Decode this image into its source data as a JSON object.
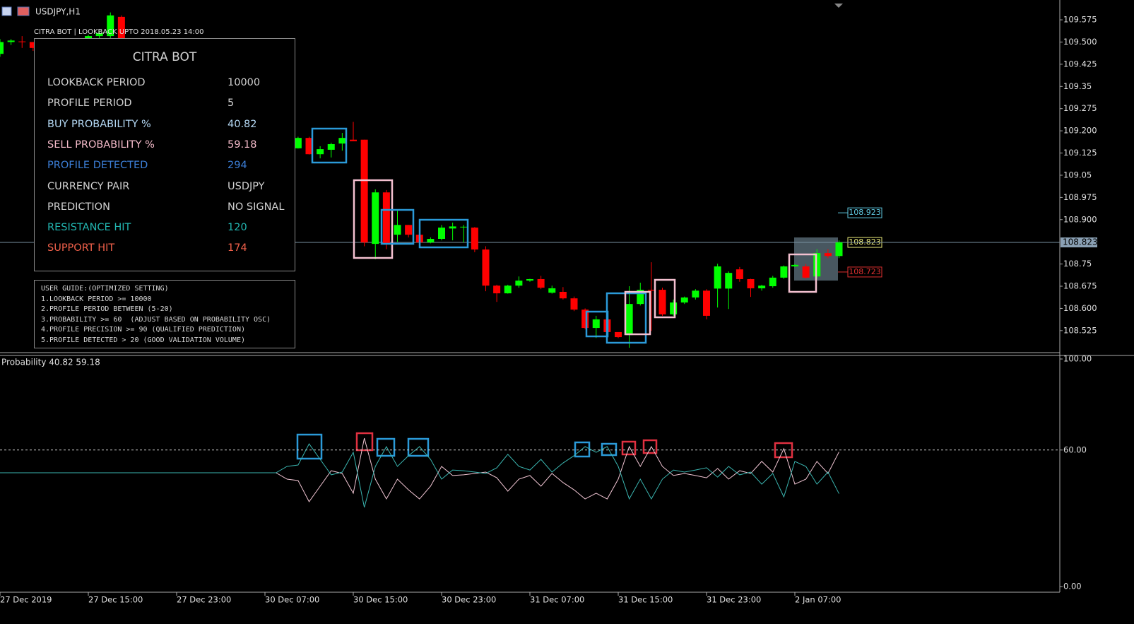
{
  "chart_data": [
    {
      "type": "candlestick",
      "title": "USDJPY,H1",
      "subtitle": "CITRA BOT | LOOKBACK UPTO 2018.05.23 14:00",
      "x": [
        0,
        1,
        2,
        3,
        8,
        9,
        10,
        11,
        27,
        28,
        29,
        30,
        31,
        32,
        33,
        34,
        35,
        36,
        37,
        38,
        39,
        40,
        41,
        42,
        43,
        44,
        45,
        46,
        47,
        48,
        49,
        50,
        51,
        52,
        53,
        54,
        55,
        56,
        57,
        58,
        59,
        60,
        61,
        62,
        63,
        64,
        65,
        66,
        67,
        68,
        69,
        70,
        71,
        72,
        73,
        74,
        75,
        76
      ],
      "open": [
        109.46,
        109.5,
        109.502,
        109.5,
        109.51,
        109.52,
        109.52,
        109.585,
        109.141,
        109.176,
        109.121,
        109.136,
        109.157,
        109.17,
        109.17,
        108.818,
        108.992,
        108.849,
        108.882,
        108.849,
        108.823,
        108.835,
        108.87,
        108.875,
        108.873,
        108.799,
        108.677,
        108.651,
        108.677,
        108.694,
        108.699,
        108.653,
        108.656,
        108.634,
        108.596,
        108.534,
        108.563,
        108.52,
        108.51,
        108.615,
        108.663,
        108.663,
        108.58,
        108.62,
        108.637,
        108.66,
        108.667,
        108.667,
        108.732,
        108.699,
        108.668,
        108.675,
        108.704,
        108.742,
        108.742,
        108.708,
        108.787,
        108.777
      ],
      "high": [
        109.51,
        109.51,
        109.52,
        109.5,
        109.525,
        109.535,
        109.6,
        109.59,
        109.18,
        109.18,
        109.148,
        109.16,
        109.193,
        109.23,
        109.17,
        109.002,
        109,
        108.93,
        108.882,
        108.85,
        108.84,
        108.882,
        108.89,
        108.882,
        108.875,
        108.81,
        108.68,
        108.68,
        108.708,
        108.7,
        108.71,
        108.677,
        108.672,
        108.64,
        108.6,
        108.575,
        108.57,
        108.52,
        108.675,
        108.687,
        108.756,
        108.67,
        108.63,
        108.64,
        108.665,
        108.665,
        108.751,
        108.725,
        108.74,
        108.7,
        108.68,
        108.71,
        108.745,
        108.75,
        108.75,
        108.8,
        108.8,
        108.83
      ],
      "low": [
        109.45,
        109.49,
        109.48,
        109.47,
        109.5,
        109.51,
        109.51,
        109.51,
        109.14,
        109.12,
        109.107,
        109.11,
        109.133,
        109.165,
        108.81,
        108.766,
        108.8,
        108.825,
        108.84,
        108.82,
        108.82,
        108.83,
        108.83,
        108.823,
        108.79,
        108.658,
        108.622,
        108.65,
        108.67,
        108.69,
        108.665,
        108.65,
        108.63,
        108.591,
        108.53,
        108.5,
        108.515,
        108.5,
        108.467,
        108.61,
        108.524,
        108.575,
        108.575,
        108.615,
        108.63,
        108.563,
        108.603,
        108.598,
        108.69,
        108.639,
        108.66,
        108.67,
        108.7,
        108.74,
        108.7,
        108.7,
        108.77,
        108.77
      ],
      "close": [
        109.5,
        109.505,
        109.5,
        109.48,
        109.52,
        109.53,
        109.59,
        109.51,
        109.176,
        109.121,
        109.138,
        109.155,
        109.176,
        109.165,
        108.823,
        108.992,
        108.818,
        108.882,
        108.849,
        108.823,
        108.835,
        108.873,
        108.877,
        108.876,
        108.799,
        108.677,
        108.651,
        108.677,
        108.694,
        108.699,
        108.67,
        108.668,
        108.634,
        108.596,
        108.534,
        108.563,
        108.52,
        108.503,
        108.615,
        108.663,
        108.66,
        108.58,
        108.62,
        108.637,
        108.66,
        108.575,
        108.742,
        108.72,
        108.699,
        108.668,
        108.677,
        108.704,
        108.742,
        108.747,
        108.704,
        108.787,
        108.777,
        108.823
      ],
      "up_color": "#00ff00",
      "down_color": "#ff0000",
      "xlim": [
        0,
        96
      ],
      "ylim": [
        108.453,
        109.642
      ],
      "xticks": [
        {
          "value": 0,
          "label": "27 Dec 2019"
        },
        {
          "value": 8,
          "label": "27 Dec 15:00"
        },
        {
          "value": 16,
          "label": "27 Dec 23:00"
        },
        {
          "value": 24,
          "label": "30 Dec 07:00"
        },
        {
          "value": 32,
          "label": "30 Dec 15:00"
        },
        {
          "value": 40,
          "label": "30 Dec 23:00"
        },
        {
          "value": 48,
          "label": "31 Dec 07:00"
        },
        {
          "value": 56,
          "label": "31 Dec 15:00"
        },
        {
          "value": 64,
          "label": "31 Dec 23:00"
        },
        {
          "value": 72,
          "label": "2 Jan 07:00"
        }
      ],
      "yticks": [
        109.575,
        {
          "value": 109.5,
          "label": "109.500"
        },
        109.425,
        109.35,
        109.275,
        {
          "value": 109.2,
          "label": "109.200"
        },
        109.125,
        109.05,
        108.975,
        {
          "value": 108.9,
          "label": "108.900"
        },
        108.75,
        108.675,
        {
          "value": 108.6,
          "label": "108.600"
        },
        108.525
      ],
      "current_price": 108.823,
      "levels": [
        108.923,
        108.823,
        108.723
      ],
      "level_colors": [
        "#5fc8e0",
        "#e8e87a",
        "#e03030"
      ]
    },
    {
      "type": "line",
      "title": "Probability 40.82 59.18",
      "x": [
        0,
        25,
        26,
        27,
        28,
        29,
        30,
        31,
        32,
        33,
        34,
        35,
        36,
        37,
        38,
        39,
        40,
        41,
        42,
        43,
        44,
        45,
        46,
        47,
        48,
        49,
        50,
        51,
        52,
        53,
        54,
        55,
        56,
        57,
        58,
        59,
        60,
        61,
        62,
        63,
        64,
        65,
        66,
        67,
        68,
        69,
        70,
        71,
        72,
        73,
        74,
        75,
        76
      ],
      "series": [
        {
          "color": "#f2c6d4",
          "values": [
            50,
            50,
            47.2,
            46.6,
            37.3,
            44.1,
            50.9,
            49.7,
            41,
            65.2,
            47.2,
            38.5,
            47.2,
            42.5,
            38.5,
            44.1,
            52.8,
            48.8,
            49.1,
            49.7,
            50.3,
            47.8,
            41.9,
            47.2,
            48.8,
            44.1,
            49.7,
            45.7,
            42.5,
            38.5,
            41,
            38.5,
            47.2,
            61.5,
            52.8,
            61.5,
            52.8,
            48.8,
            49.7,
            48.8,
            47.8,
            51.9,
            47.2,
            50.9,
            49.7,
            55,
            50.3,
            60.6,
            45,
            47.2,
            55,
            49.7,
            59.18
          ]
        },
        {
          "color": "#3ab5b0",
          "values": [
            50,
            50,
            52.8,
            53.4,
            62.7,
            55.9,
            49.1,
            50.3,
            59,
            34.8,
            52.8,
            61.5,
            52.8,
            57.5,
            61.5,
            55.9,
            47.2,
            51.2,
            50.9,
            50.3,
            49.7,
            52.2,
            58.1,
            52.8,
            51.2,
            55.9,
            50.3,
            54.3,
            57.5,
            61.5,
            59,
            61.5,
            52.8,
            38.5,
            47.2,
            38.5,
            47.2,
            51.2,
            50.3,
            51.2,
            52.2,
            48.1,
            52.8,
            49.1,
            50.3,
            45,
            49.7,
            39.4,
            55,
            52.8,
            45,
            50.3,
            40.82
          ]
        }
      ],
      "xlim": [
        0,
        96
      ],
      "ylim": [
        0,
        100
      ],
      "yticks": [
        {
          "value": 100,
          "label": "100.00"
        },
        {
          "value": 60,
          "label": "60.00"
        },
        {
          "value": 0,
          "label": "0.00"
        }
      ],
      "level": 60
    }
  ],
  "panel": {
    "title": "CITRA BOT",
    "rows": [
      {
        "label": "LOOKBACK PERIOD",
        "value": 10000,
        "color": "#d0d0d0"
      },
      {
        "label": "PROFILE PERIOD",
        "value": 5,
        "color": "#d0d0d0"
      },
      {
        "label": "BUY PROBABILITY %",
        "value": 40.82,
        "color": "#b4d8f4"
      },
      {
        "label": "SELL PROBABILITY %",
        "value": 59.18,
        "color": "#f6bccb"
      },
      {
        "label": "PROFILE DETECTED",
        "value": 294,
        "color": "#3c7fd8"
      },
      {
        "label": "CURRENCY PAIR",
        "value": "USDJPY",
        "color": "#d0d0d0"
      },
      {
        "label": "PREDICTION",
        "value": "NO SIGNAL",
        "color": "#d0d0d0"
      },
      {
        "label": "RESISTANCE HIT",
        "value": 120,
        "color": "#22b5b0"
      },
      {
        "label": "SUPPORT HIT",
        "value": 174,
        "color": "#f0604a"
      }
    ]
  },
  "guide": {
    "lines": [
      "USER GUIDE:(OPTIMIZED SETTING)",
      "1.LOOKBACK PERIOD >= 10000",
      "2.PROFILE PERIOD BETWEEN (5-20)",
      "3.PROBABILITY >= 60  (ADJUST BASED ON PROBABILITY OSC)",
      "4.PROFILE PRECISION >= 90 (QUALIFIED PREDICTION)",
      "5.PROFILE DETECTED > 20 (GOOD VALIDATION VOLUME)"
    ]
  }
}
